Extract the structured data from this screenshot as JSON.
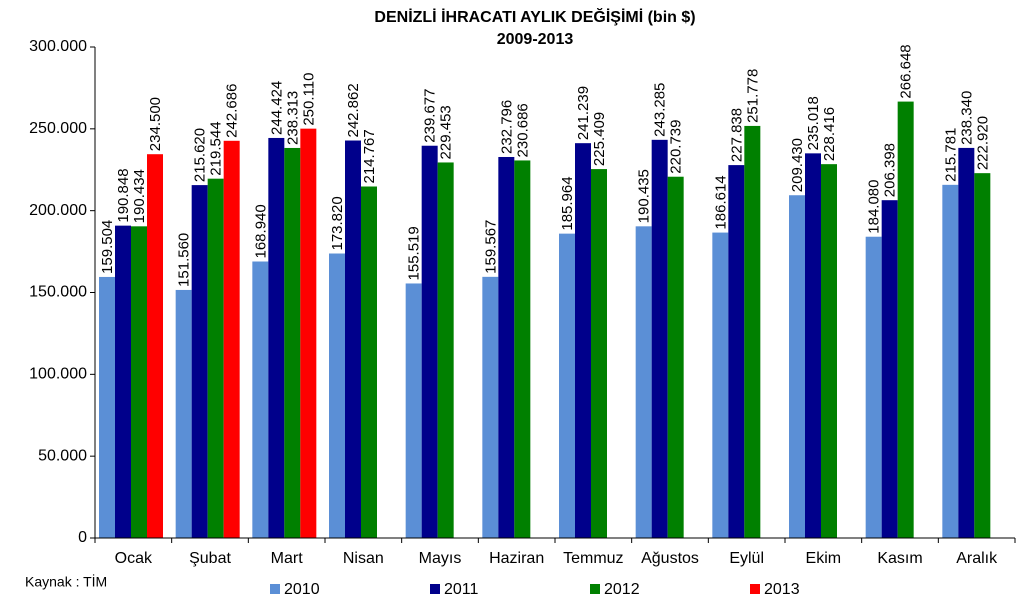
{
  "chart_data": {
    "type": "bar",
    "title": "DENİZLİ İHRACATI AYLIK DEĞİŞİMİ (bin $)",
    "subtitle": "2009-2013",
    "source": "Kaynak : TİM",
    "categories": [
      "Ocak",
      "Şubat",
      "Mart",
      "Nisan",
      "Mayıs",
      "Haziran",
      "Temmuz",
      "Ağustos",
      "Eylül",
      "Ekim",
      "Kasım",
      "Aralık"
    ],
    "series": [
      {
        "name": "2010",
        "color": "#5b8fd6",
        "label_color": "#4f81bd",
        "values": [
          159504,
          151560,
          168940,
          173820,
          155519,
          159567,
          185964,
          190435,
          186614,
          209430,
          184080,
          215781
        ],
        "value_labels": [
          "159.504",
          "151.560",
          "168.940",
          "173.820",
          "155.519",
          "159.567",
          "185.964",
          "190.435",
          "186.614",
          "209.430",
          "184.080",
          "215.781"
        ]
      },
      {
        "name": "2011",
        "color": "#00008b",
        "label_color": "#00008b",
        "values": [
          190848,
          215620,
          244424,
          242862,
          239677,
          232796,
          241239,
          243285,
          227838,
          235018,
          206398,
          238340
        ],
        "value_labels": [
          "190.848",
          "215.620",
          "244.424",
          "242.862",
          "239.677",
          "232.796",
          "241.239",
          "243.285",
          "227.838",
          "235.018",
          "206.398",
          "238.340"
        ]
      },
      {
        "name": "2012",
        "color": "#008000",
        "label_color": "#008000",
        "values": [
          190434,
          219544,
          238313,
          214767,
          229453,
          230686,
          225409,
          220739,
          251778,
          228416,
          266648,
          222920
        ],
        "value_labels": [
          "190.434",
          "219.544",
          "238.313",
          "214.767",
          "229.453",
          "230.686",
          "225.409",
          "220.739",
          "251.778",
          "228.416",
          "266.648",
          "222.920"
        ]
      },
      {
        "name": "2013",
        "color": "#ff0000",
        "label_color": "#ff0000",
        "values": [
          234500,
          242686,
          250110,
          null,
          null,
          null,
          null,
          null,
          null,
          null,
          null,
          null
        ],
        "value_labels": [
          "234.500",
          "242.686",
          "250.110",
          null,
          null,
          null,
          null,
          null,
          null,
          null,
          null,
          null
        ]
      }
    ],
    "ylim": [
      0,
      300000
    ],
    "yticks": [
      0,
      {
        "value": 50000,
        "label": "50.000"
      },
      {
        "value": 100000,
        "label": "100.000"
      },
      {
        "value": 150000,
        "label": "150.000"
      },
      {
        "value": 200000,
        "label": "200.000"
      },
      {
        "value": 250000,
        "label": "250.000"
      },
      {
        "value": 300000,
        "label": "300.000"
      }
    ],
    "grid": false
  }
}
